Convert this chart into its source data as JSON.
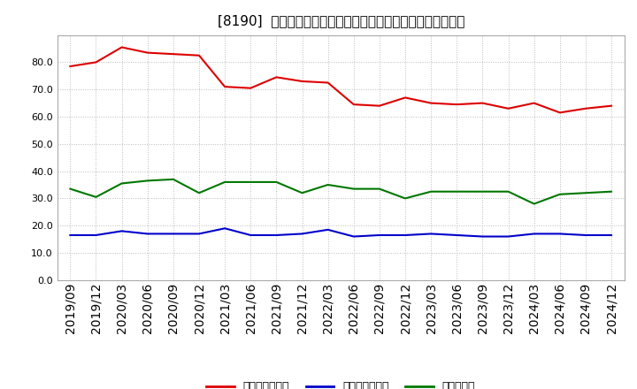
{
  "title": "[8190]  売上債権回転率、買入債務回転率、在庫回転率の推移",
  "x_labels": [
    "2019/09",
    "2019/12",
    "2020/03",
    "2020/06",
    "2020/09",
    "2020/12",
    "2021/03",
    "2021/06",
    "2021/09",
    "2021/12",
    "2022/03",
    "2022/06",
    "2022/09",
    "2022/12",
    "2023/03",
    "2023/06",
    "2023/09",
    "2023/12",
    "2024/03",
    "2024/06",
    "2024/09",
    "2024/12"
  ],
  "series_names": [
    "売上債権回転率",
    "買入債務回転率",
    "在庫回転率"
  ],
  "series_colors": [
    "#dd0000",
    "#0000cc",
    "#007700"
  ],
  "series_values": [
    [
      78.5,
      80.0,
      85.5,
      83.5,
      83.0,
      82.5,
      71.0,
      70.5,
      74.5,
      73.0,
      72.5,
      64.5,
      64.0,
      67.0,
      65.0,
      64.5,
      65.0,
      63.0,
      65.0,
      61.5,
      63.0,
      64.0
    ],
    [
      16.5,
      16.5,
      18.0,
      17.0,
      17.0,
      17.0,
      19.0,
      16.5,
      16.5,
      17.0,
      18.5,
      16.0,
      16.5,
      16.5,
      17.0,
      16.5,
      16.0,
      16.0,
      17.0,
      17.0,
      16.5,
      16.5
    ],
    [
      33.5,
      30.5,
      35.5,
      36.5,
      37.0,
      32.0,
      36.0,
      36.0,
      36.0,
      32.0,
      35.0,
      33.5,
      33.5,
      30.0,
      32.5,
      32.5,
      32.5,
      32.5,
      28.0,
      31.5,
      32.0,
      32.5
    ]
  ],
  "ylim": [
    0,
    90
  ],
  "yticks": [
    0.0,
    10.0,
    20.0,
    30.0,
    40.0,
    50.0,
    60.0,
    70.0,
    80.0
  ],
  "background_color": "#ffffff",
  "plot_bg_color": "#ffffff",
  "grid_color": "#bbbbbb",
  "title_fontsize": 11,
  "tick_fontsize": 7,
  "legend_fontsize": 9
}
